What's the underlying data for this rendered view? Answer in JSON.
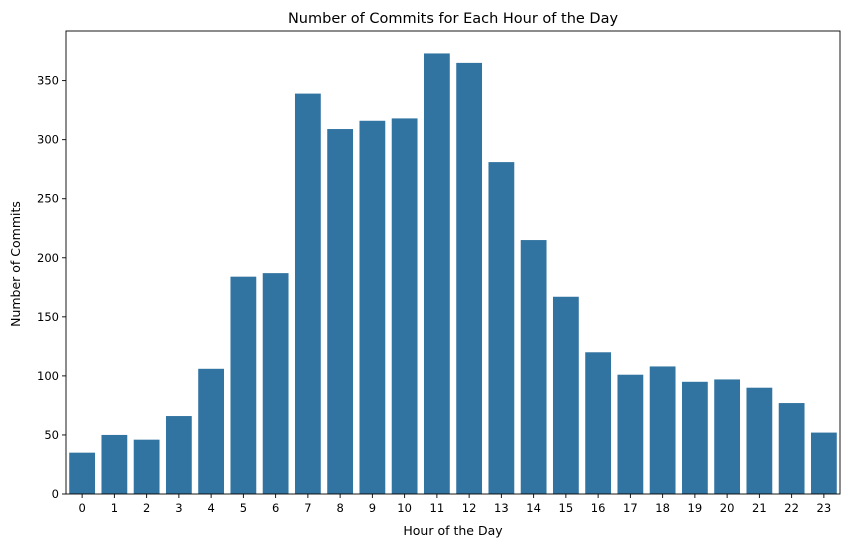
{
  "chart_data": {
    "type": "bar",
    "title": "Number of Commits for Each Hour of the Day",
    "xlabel": "Hour of the Day",
    "ylabel": "Number of Commits",
    "categories": [
      "0",
      "1",
      "2",
      "3",
      "4",
      "5",
      "6",
      "7",
      "8",
      "9",
      "10",
      "11",
      "12",
      "13",
      "14",
      "15",
      "16",
      "17",
      "18",
      "19",
      "20",
      "21",
      "22",
      "23"
    ],
    "values": [
      35,
      50,
      46,
      66,
      106,
      184,
      187,
      339,
      309,
      316,
      318,
      373,
      365,
      281,
      215,
      167,
      120,
      101,
      108,
      95,
      97,
      90,
      77,
      52
    ],
    "ylim": [
      0,
      392
    ],
    "yticks": [
      "0",
      "50",
      "100",
      "150",
      "200",
      "250",
      "300",
      "350"
    ],
    "grid": false,
    "bar_color": "#3274a1"
  }
}
